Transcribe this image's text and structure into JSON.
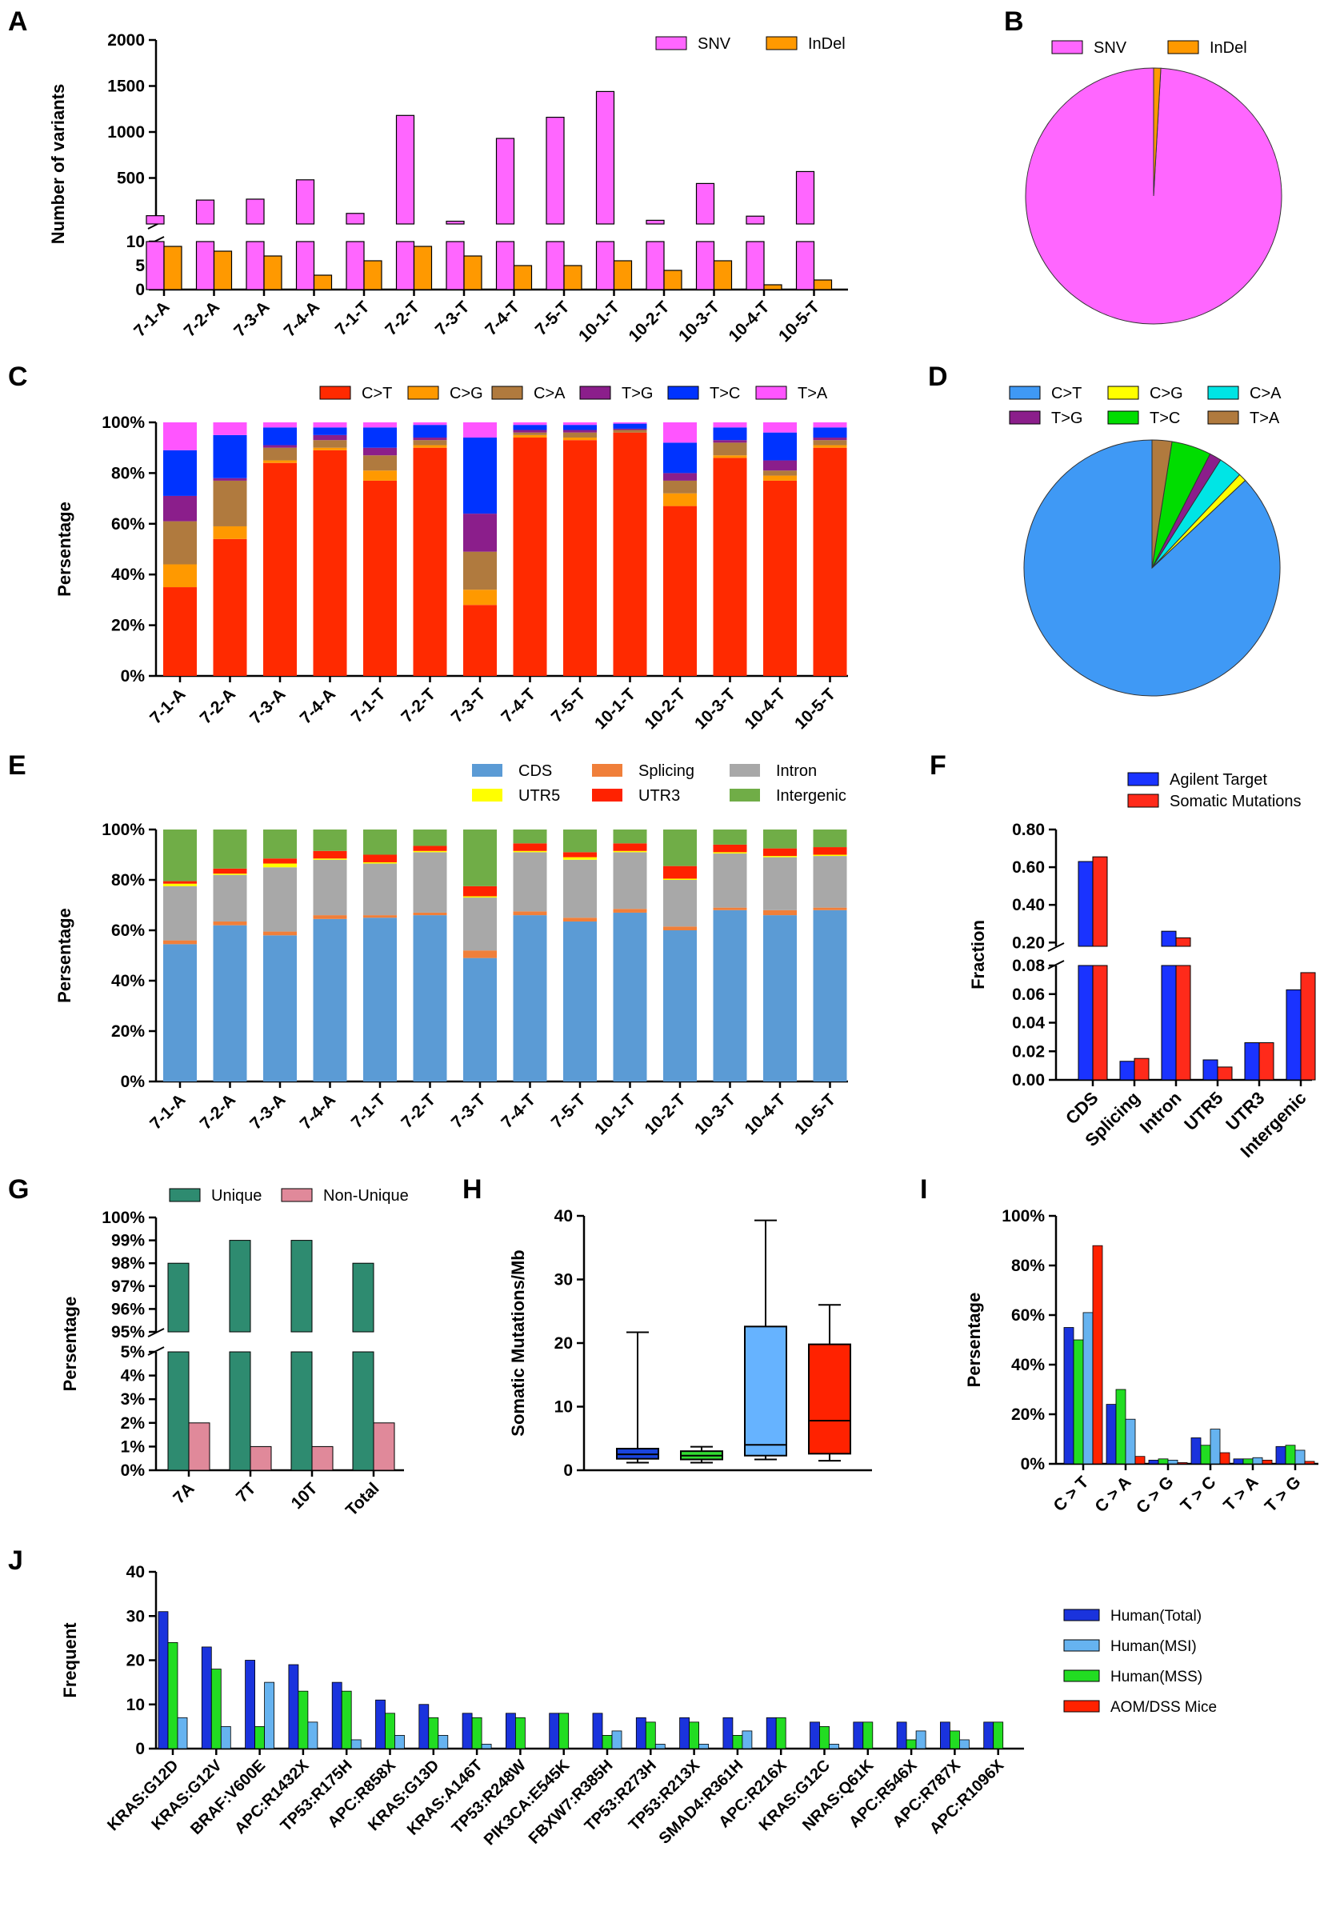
{
  "colors": {
    "SNV": "#ff66ff",
    "InDel": "#ff9900",
    "C>T": "#ff2a00",
    "C>G": "#ff9900",
    "C>A": "#b07a3e",
    "T>G": "#8b1e8b",
    "T>C": "#0033ff",
    "T>A": "#ff55ff",
    "CDS": "#5b9bd5",
    "Splicing": "#f07f3a",
    "Intron": "#a8a8a8",
    "UTR5": "#ffff00",
    "UTR3": "#ff2200",
    "Intergenic": "#70ad47",
    "pieD_C>T": "#3f99f5",
    "pieD_C>G": "#ffff00",
    "pieD_C>A": "#00e5e5",
    "pieD_T>G": "#8b1e8b",
    "pieD_T>C": "#00dd00",
    "pieD_T>A": "#b07a3e",
    "Agilent Target": "#1a33ff",
    "Somatic Mutations": "#ff2a1a",
    "Unique": "#2e8b70",
    "Non-Unique": "#e0899a",
    "box1": "#1a44dd",
    "box2": "#33dd33",
    "box3": "#66b3ff",
    "box4": "#ff2200",
    "Human(Total)": "#1a33dd",
    "Human(MSI)": "#66b3f0",
    "Human(MSS)": "#22dd22",
    "AOM/DSS Mice": "#ff2200"
  },
  "chart_data": [
    {
      "panel": "A",
      "type": "bar",
      "ylabel": "Number of variants",
      "categories": [
        "7-1-A",
        "7-2-A",
        "7-3-A",
        "7-4-A",
        "7-1-T",
        "7-2-T",
        "7-3-T",
        "7-4-T",
        "7-5-T",
        "10-1-T",
        "10-2-T",
        "10-3-T",
        "10-4-T",
        "10-5-T"
      ],
      "series": [
        {
          "name": "SNV",
          "values": [
            90,
            260,
            270,
            480,
            115,
            1180,
            30,
            930,
            1160,
            1440,
            40,
            440,
            85,
            570
          ]
        },
        {
          "name": "InDel",
          "values": [
            9,
            8,
            7,
            3,
            6,
            9,
            7,
            5,
            5,
            6,
            4,
            6,
            1,
            2
          ]
        }
      ],
      "upper_ylim": [
        0,
        2000
      ],
      "upper_ticks": [
        "500",
        "1000",
        "1500",
        "2000"
      ],
      "lower_ylim": [
        0,
        10
      ],
      "lower_ticks": [
        "0",
        "5",
        "10"
      ]
    },
    {
      "panel": "B",
      "type": "pie",
      "slices": [
        {
          "name": "SNV",
          "value": 99.1
        },
        {
          "name": "InDel",
          "value": 0.9
        }
      ]
    },
    {
      "panel": "C",
      "type": "bar",
      "stacked": true,
      "ylabel": "Persentage",
      "ticks": [
        "0%",
        "20%",
        "40%",
        "60%",
        "80%",
        "100%"
      ],
      "categories": [
        "7-1-A",
        "7-2-A",
        "7-3-A",
        "7-4-A",
        "7-1-T",
        "7-2-T",
        "7-3-T",
        "7-4-T",
        "7-5-T",
        "10-1-T",
        "10-2-T",
        "10-3-T",
        "10-4-T",
        "10-5-T"
      ],
      "series": [
        {
          "name": "C>T",
          "values": [
            35,
            54,
            84,
            89,
            77,
            90,
            28,
            94,
            93,
            96,
            67,
            86,
            77,
            90
          ]
        },
        {
          "name": "C>G",
          "values": [
            9,
            5,
            1,
            1,
            4,
            1,
            6,
            1,
            1,
            0,
            5,
            1,
            2,
            1
          ]
        },
        {
          "name": "C>A",
          "values": [
            17,
            18,
            5,
            3,
            6,
            2,
            15,
            1,
            2,
            1,
            5,
            5,
            2,
            2
          ]
        },
        {
          "name": "T>G",
          "values": [
            10,
            1,
            1,
            2,
            3,
            1,
            15,
            1,
            1,
            0.5,
            3,
            1,
            4,
            1
          ]
        },
        {
          "name": "T>C",
          "values": [
            18,
            17,
            7,
            3,
            8,
            5,
            30,
            2,
            2,
            2,
            12,
            5,
            11,
            4
          ]
        },
        {
          "name": "T>A",
          "values": [
            11,
            5,
            2,
            2,
            2,
            1,
            6,
            1,
            1,
            0.5,
            8,
            2,
            4,
            2
          ]
        }
      ]
    },
    {
      "panel": "D",
      "type": "pie",
      "slices": [
        {
          "name": "C>T",
          "value": 87
        },
        {
          "name": "C>G",
          "value": 1
        },
        {
          "name": "C>A",
          "value": 3
        },
        {
          "name": "T>G",
          "value": 1.5
        },
        {
          "name": "T>C",
          "value": 5
        },
        {
          "name": "T>A",
          "value": 2.5
        }
      ]
    },
    {
      "panel": "E",
      "type": "bar",
      "stacked": true,
      "ylabel": "Persentage",
      "ticks": [
        "0%",
        "20%",
        "40%",
        "60%",
        "80%",
        "100%"
      ],
      "categories": [
        "7-1-A",
        "7-2-A",
        "7-3-A",
        "7-4-A",
        "7-1-T",
        "7-2-T",
        "7-3-T",
        "7-4-T",
        "7-5-T",
        "10-1-T",
        "10-2-T",
        "10-3-T",
        "10-4-T",
        "10-5-T"
      ],
      "series": [
        {
          "name": "CDS",
          "values": [
            54.5,
            62,
            58,
            64.5,
            65,
            66,
            49,
            66,
            63.5,
            67,
            60,
            68,
            66,
            68
          ]
        },
        {
          "name": "Splicing",
          "values": [
            1.5,
            1.5,
            1.5,
            1.5,
            1,
            1,
            3,
            1.5,
            1.5,
            1.5,
            1.5,
            1,
            2,
            1
          ]
        },
        {
          "name": "Intron",
          "values": [
            21.5,
            18.5,
            25.5,
            22,
            20.5,
            24,
            21,
            23.5,
            23,
            22.5,
            18.5,
            21.5,
            21,
            20.5
          ]
        },
        {
          "name": "UTR5",
          "values": [
            1,
            0.5,
            1.5,
            0.5,
            0.5,
            0.5,
            0.5,
            0.5,
            1,
            0.5,
            0.5,
            0.5,
            0.5,
            0.5
          ]
        },
        {
          "name": "UTR3",
          "values": [
            1,
            2,
            2,
            3,
            3,
            2,
            4,
            3,
            2,
            3,
            5,
            3,
            3,
            3
          ]
        },
        {
          "name": "Intergenic",
          "values": [
            20.5,
            15.5,
            11.5,
            8.5,
            10,
            6.5,
            22.5,
            5.5,
            9,
            5.5,
            14.5,
            6,
            7.5,
            7
          ]
        }
      ]
    },
    {
      "panel": "F",
      "type": "bar",
      "ylabel": "Fraction",
      "categories": [
        "CDS",
        "Splicing",
        "Intron",
        "UTR5",
        "UTR3",
        "Intergenic"
      ],
      "series": [
        {
          "name": "Agilent Target",
          "values": [
            0.63,
            0.013,
            0.26,
            0.014,
            0.026,
            0.063
          ]
        },
        {
          "name": "Somatic Mutations",
          "values": [
            0.655,
            0.015,
            0.225,
            0.009,
            0.026,
            0.075
          ]
        }
      ],
      "upper_ylim": [
        0.18,
        0.8
      ],
      "upper_ticks": [
        "0.20",
        "0.40",
        "0.60",
        "0.80"
      ],
      "lower_ylim": [
        0,
        0.08
      ],
      "lower_ticks": [
        "0.00",
        "0.02",
        "0.04",
        "0.06",
        "0.08"
      ]
    },
    {
      "panel": "G",
      "type": "bar",
      "ylabel": "Persentage",
      "categories": [
        "7A",
        "7T",
        "10T",
        "Total"
      ],
      "series": [
        {
          "name": "Unique",
          "values": [
            98,
            99,
            99,
            98
          ]
        },
        {
          "name": "Non-Unique",
          "values": [
            2,
            1,
            1,
            2
          ]
        }
      ],
      "upper_ylim": [
        95,
        100
      ],
      "upper_ticks": [
        "95%",
        "96%",
        "97%",
        "98%",
        "99%",
        "100%"
      ],
      "lower_ylim": [
        0,
        5
      ],
      "lower_ticks": [
        "0%",
        "1%",
        "2%",
        "3%",
        "4%",
        "5%"
      ]
    },
    {
      "panel": "H",
      "type": "box",
      "ylabel": "Somatic Mutations/Mb",
      "ylim": [
        0,
        40
      ],
      "ticks": [
        "0",
        "10",
        "20",
        "30",
        "40"
      ],
      "boxes": [
        {
          "min": 1.2,
          "q1": 1.8,
          "median": 2.5,
          "q3": 3.4,
          "max": 21.7
        },
        {
          "min": 1.2,
          "q1": 1.7,
          "median": 2.3,
          "q3": 3.0,
          "max": 3.7
        },
        {
          "min": 1.7,
          "q1": 2.3,
          "median": 4.0,
          "q3": 22.6,
          "max": 39.3
        },
        {
          "min": 1.5,
          "q1": 2.6,
          "median": 7.8,
          "q3": 19.8,
          "max": 26.0
        }
      ]
    },
    {
      "panel": "I",
      "type": "bar",
      "ylabel": "Persentage",
      "ylim": [
        0,
        100
      ],
      "ticks": [
        "0%",
        "20%",
        "40%",
        "60%",
        "80%",
        "100%"
      ],
      "categories": [
        "C > T",
        "C > A",
        "C > G",
        "T > C",
        "T > A",
        "T > G"
      ],
      "series": [
        {
          "name": "Human(Total)",
          "values": [
            55,
            24,
            1.5,
            10.5,
            2,
            7
          ]
        },
        {
          "name": "Human(MSS)",
          "values": [
            50,
            30,
            2,
            7.5,
            2,
            7.5
          ]
        },
        {
          "name": "Human(MSI)",
          "values": [
            61,
            18,
            1.5,
            14,
            2.5,
            5.5
          ]
        },
        {
          "name": "AOM/DSS Mice",
          "values": [
            88,
            3,
            0.5,
            4.5,
            1.5,
            1
          ]
        }
      ]
    },
    {
      "panel": "J",
      "type": "bar",
      "ylabel": "Frequent",
      "ylim": [
        0,
        40
      ],
      "ticks": [
        "0",
        "10",
        "20",
        "30",
        "40"
      ],
      "categories": [
        "KRAS:G12D",
        "KRAS:G12V",
        "BRAF:V600E",
        "APC:R1432X",
        "TP53:R175H",
        "APC:R858X",
        "KRAS:G13D",
        "KRAS:A146T",
        "TP53:R248W",
        "PIK3CA:E545K",
        "FBXW7:R385H",
        "TP53:R273H",
        "TP53:R213X",
        "SMAD4:R361H",
        "APC:R216X",
        "KRAS:G12C",
        "NRAS:Q61K",
        "APC:R546X",
        "APC:R787X",
        "APC:R1096X"
      ],
      "series": [
        {
          "name": "Human(Total)",
          "values": [
            31,
            23,
            20,
            19,
            15,
            11,
            10,
            8,
            8,
            8,
            8,
            7,
            7,
            7,
            7,
            6,
            6,
            6,
            6,
            6
          ]
        },
        {
          "name": "Human(MSS)",
          "values": [
            24,
            18,
            5,
            13,
            13,
            8,
            7,
            7,
            7,
            8,
            3,
            6,
            6,
            3,
            7,
            5,
            6,
            2,
            4,
            6
          ]
        },
        {
          "name": "Human(MSI)",
          "values": [
            7,
            5,
            15,
            6,
            2,
            3,
            3,
            1,
            0,
            0,
            4,
            1,
            1,
            4,
            0,
            1,
            0,
            4,
            2,
            0
          ]
        }
      ],
      "legend": [
        "Human(Total)",
        "Human(MSI)",
        "Human(MSS)",
        "AOM/DSS Mice"
      ]
    }
  ]
}
